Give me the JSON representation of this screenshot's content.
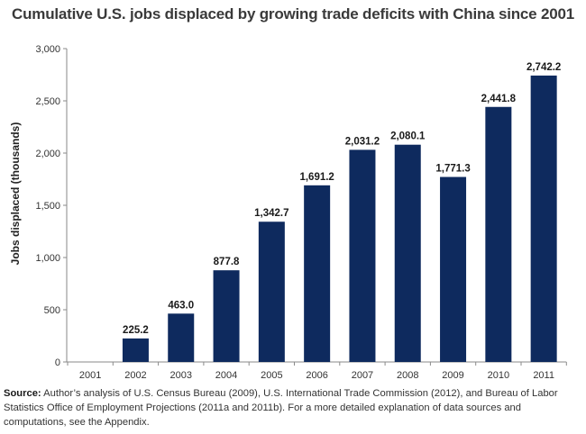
{
  "chart_data": {
    "type": "bar",
    "title": "Cumulative U.S. jobs displaced by growing trade deficits with China since 2001",
    "ylabel": "Jobs displaced (thousands)",
    "xlabel": "",
    "categories": [
      "2001",
      "2002",
      "2003",
      "2004",
      "2005",
      "2006",
      "2007",
      "2008",
      "2009",
      "2010",
      "2011"
    ],
    "values": [
      0,
      225.2,
      463.0,
      877.8,
      1342.7,
      1691.2,
      2031.2,
      2080.1,
      1771.3,
      2441.8,
      2742.2
    ],
    "data_labels": [
      "",
      "225.2",
      "463.0",
      "877.8",
      "1,342.7",
      "1,691.2",
      "2,031.2",
      "2,080.1",
      "1,771.3",
      "2,441.8",
      "2,742.2"
    ],
    "ylim": [
      0,
      3000
    ],
    "yticks": [
      0,
      500,
      1000,
      1500,
      2000,
      2500,
      3000
    ],
    "ytick_labels": [
      "0",
      "500",
      "1,000",
      "1,500",
      "2,000",
      "2,500",
      "3,000"
    ],
    "grid": false,
    "bar_color": "#0e2a5e",
    "axis_color": "#8a8a8a"
  },
  "source": {
    "label": "Source:",
    "text": "Author’s analysis of U.S. Census Bureau (2009), U.S. International Trade Commission (2012), and Bureau of Labor Statistics Office of Employment Projections (2011a and 2011b). For a more detailed explanation of data sources and computations, see the Appendix."
  }
}
